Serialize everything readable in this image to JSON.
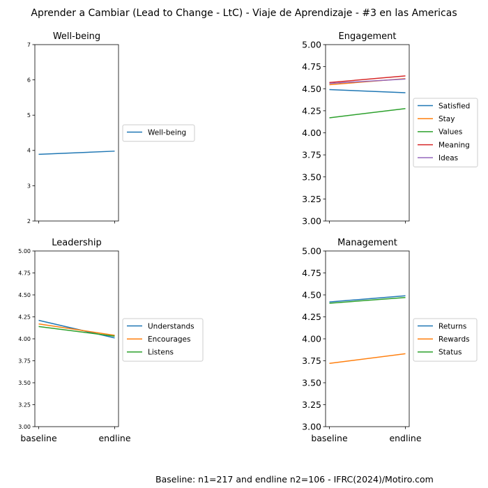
{
  "title": "Aprender a Cambiar (Lead to Change - LtC) - Viaje de Aprendizaje - #3 en las Americas",
  "footer": "Baseline: n1=217 and endline n2=106 - IFRC(2024)/Motiro.com",
  "chart_data": [
    {
      "type": "line",
      "title": "Well-being",
      "categories": [
        "baseline",
        "endline"
      ],
      "ylim": [
        2,
        7
      ],
      "yticks": [
        "2",
        "3",
        "4",
        "5",
        "6",
        "7"
      ],
      "show_x_ticklabels": false,
      "series": [
        {
          "name": "Well-being",
          "color": "#1f77b4",
          "values": [
            3.89,
            3.98
          ]
        }
      ]
    },
    {
      "type": "line",
      "title": "Engagement",
      "categories": [
        "baseline",
        "endline"
      ],
      "ylim": [
        3.0,
        5.0
      ],
      "yticks": [
        "3.00",
        "3.25",
        "3.50",
        "3.75",
        "4.00",
        "4.25",
        "4.50",
        "4.75",
        "5.00"
      ],
      "show_x_ticklabels": false,
      "series": [
        {
          "name": "Satisfied",
          "color": "#1f77b4",
          "values": [
            4.49,
            4.455
          ]
        },
        {
          "name": "Stay",
          "color": "#ff7f0e",
          "values": [
            4.545,
            4.615
          ]
        },
        {
          "name": "Values",
          "color": "#2ca02c",
          "values": [
            4.17,
            4.275
          ]
        },
        {
          "name": "Meaning",
          "color": "#d62728",
          "values": [
            4.57,
            4.645
          ]
        },
        {
          "name": "Ideas",
          "color": "#9467bd",
          "values": [
            4.56,
            4.61
          ]
        }
      ]
    },
    {
      "type": "line",
      "title": "Leadership",
      "categories": [
        "baseline",
        "endline"
      ],
      "ylim": [
        3.0,
        5.0
      ],
      "yticks": [
        "3.00",
        "3.25",
        "3.50",
        "3.75",
        "4.00",
        "4.25",
        "4.50",
        "4.75",
        "5.00"
      ],
      "show_x_ticklabels": true,
      "series": [
        {
          "name": "Understands",
          "color": "#1f77b4",
          "values": [
            4.21,
            4.01
          ]
        },
        {
          "name": "Encourages",
          "color": "#ff7f0e",
          "values": [
            4.17,
            4.04
          ]
        },
        {
          "name": "Listens",
          "color": "#2ca02c",
          "values": [
            4.14,
            4.03
          ]
        }
      ]
    },
    {
      "type": "line",
      "title": "Management",
      "categories": [
        "baseline",
        "endline"
      ],
      "ylim": [
        3.0,
        5.0
      ],
      "yticks": [
        "3.00",
        "3.25",
        "3.50",
        "3.75",
        "4.00",
        "4.25",
        "4.50",
        "4.75",
        "5.00"
      ],
      "show_x_ticklabels": true,
      "series": [
        {
          "name": "Returns",
          "color": "#1f77b4",
          "values": [
            4.42,
            4.49
          ]
        },
        {
          "name": "Rewards",
          "color": "#ff7f0e",
          "values": [
            3.72,
            3.83
          ]
        },
        {
          "name": "Status",
          "color": "#2ca02c",
          "values": [
            4.405,
            4.47
          ]
        }
      ]
    }
  ]
}
